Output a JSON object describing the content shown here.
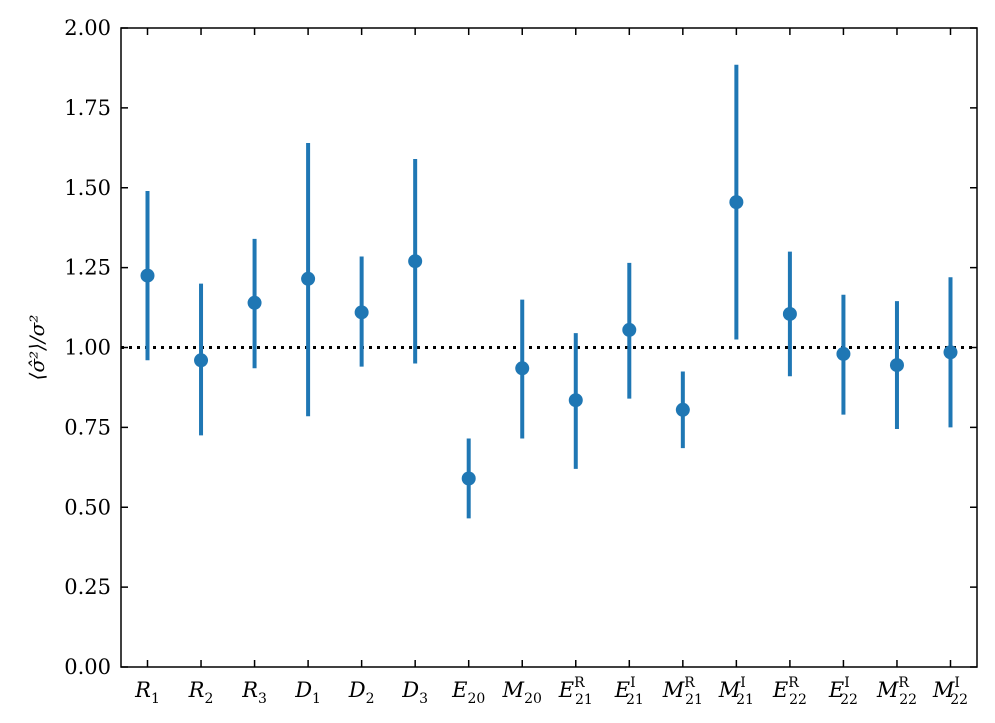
{
  "chart_data": {
    "type": "scatter",
    "title": "",
    "xlabel": "",
    "ylabel": "⟨σ̂²⟩/σ²",
    "ylim": [
      0,
      2
    ],
    "yticks": [
      "0.00",
      "0.25",
      "0.50",
      "0.75",
      "1.00",
      "1.25",
      "1.50",
      "1.75",
      "2.00"
    ],
    "reference_line": 1.0,
    "grid": false,
    "marker_color": "#1f77b4",
    "categories": [
      {
        "base": "R",
        "sub": "1",
        "sup": ""
      },
      {
        "base": "R",
        "sub": "2",
        "sup": ""
      },
      {
        "base": "R",
        "sub": "3",
        "sup": ""
      },
      {
        "base": "D",
        "sub": "1",
        "sup": ""
      },
      {
        "base": "D",
        "sub": "2",
        "sup": ""
      },
      {
        "base": "D",
        "sub": "3",
        "sup": ""
      },
      {
        "base": "E",
        "sub": "20",
        "sup": ""
      },
      {
        "base": "M",
        "sub": "20",
        "sup": ""
      },
      {
        "base": "E",
        "sub": "21",
        "sup": "R"
      },
      {
        "base": "E",
        "sub": "21",
        "sup": "I"
      },
      {
        "base": "M",
        "sub": "21",
        "sup": "R"
      },
      {
        "base": "M",
        "sub": "21",
        "sup": "I"
      },
      {
        "base": "E",
        "sub": "22",
        "sup": "R"
      },
      {
        "base": "E",
        "sub": "22",
        "sup": "I"
      },
      {
        "base": "M",
        "sub": "22",
        "sup": "R"
      },
      {
        "base": "M",
        "sub": "22",
        "sup": "I"
      }
    ],
    "values": [
      1.225,
      0.96,
      1.14,
      1.215,
      1.11,
      1.27,
      0.59,
      0.935,
      0.835,
      1.055,
      0.805,
      1.455,
      1.105,
      0.98,
      0.945,
      0.985
    ],
    "lower": [
      0.96,
      0.725,
      0.935,
      0.785,
      0.94,
      0.95,
      0.465,
      0.715,
      0.62,
      0.84,
      0.685,
      1.025,
      0.91,
      0.79,
      0.745,
      0.75
    ],
    "upper": [
      1.49,
      1.2,
      1.34,
      1.64,
      1.285,
      1.59,
      0.715,
      1.15,
      1.045,
      1.265,
      0.925,
      1.885,
      1.3,
      1.165,
      1.145,
      1.22
    ]
  }
}
